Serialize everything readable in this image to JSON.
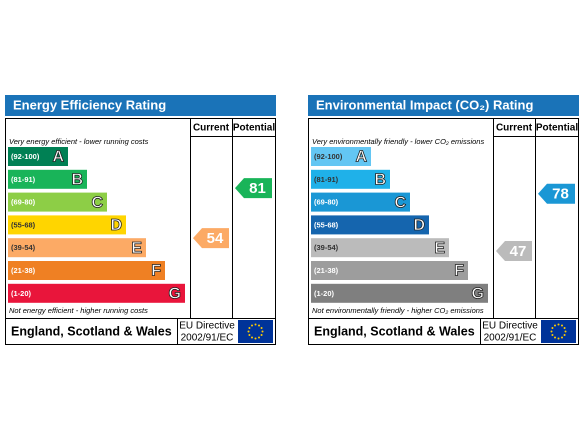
{
  "panels": [
    {
      "title": "Energy Efficiency Rating",
      "columns": [
        "Current",
        "Potential"
      ],
      "top_note": "Very energy efficient - lower running costs",
      "bottom_note": "Not energy efficient - higher running costs",
      "bands": [
        {
          "range": "(92-100)",
          "letter": "A",
          "color": "#008054",
          "text_color": "#ffffff"
        },
        {
          "range": "(81-91)",
          "letter": "B",
          "color": "#19b459",
          "text_color": "#ffffff"
        },
        {
          "range": "(69-80)",
          "letter": "C",
          "color": "#8dce46",
          "text_color": "#ffffff"
        },
        {
          "range": "(55-68)",
          "letter": "D",
          "color": "#ffd500",
          "text_color": "#333333"
        },
        {
          "range": "(39-54)",
          "letter": "E",
          "color": "#fcaa65",
          "text_color": "#333333"
        },
        {
          "range": "(21-38)",
          "letter": "F",
          "color": "#ef8023",
          "text_color": "#ffffff"
        },
        {
          "range": "(1-20)",
          "letter": "G",
          "color": "#e9153b",
          "text_color": "#ffffff"
        }
      ],
      "current": {
        "value": "54",
        "color": "#fcaa65"
      },
      "potential": {
        "value": "81",
        "color": "#19b459"
      },
      "footer": "England, Scotland & Wales",
      "directive": [
        "EU Directive",
        "2002/91/EC"
      ]
    },
    {
      "title": "Environmental Impact (CO₂) Rating",
      "columns": [
        "Current",
        "Potential"
      ],
      "top_note": "Very environmentally friendly - lower CO₂ emissions",
      "bottom_note": "Not environmentally friendly - higher CO₂ emissions",
      "bands": [
        {
          "range": "(92-100)",
          "letter": "A",
          "color": "#63c6f3",
          "text_color": "#333333"
        },
        {
          "range": "(81-91)",
          "letter": "B",
          "color": "#1fb1e9",
          "text_color": "#333333"
        },
        {
          "range": "(69-80)",
          "letter": "C",
          "color": "#1a97d5",
          "text_color": "#ffffff"
        },
        {
          "range": "(55-68)",
          "letter": "D",
          "color": "#1565ae",
          "text_color": "#ffffff"
        },
        {
          "range": "(39-54)",
          "letter": "E",
          "color": "#bbbbbb",
          "text_color": "#333333"
        },
        {
          "range": "(21-38)",
          "letter": "F",
          "color": "#9d9d9d",
          "text_color": "#ffffff"
        },
        {
          "range": "(1-20)",
          "letter": "G",
          "color": "#7f7f7f",
          "text_color": "#ffffff"
        }
      ],
      "current": {
        "value": "47",
        "color": "#bbbbbb"
      },
      "potential": {
        "value": "78",
        "color": "#1a97d5"
      },
      "footer": "England, Scotland & Wales",
      "directive": [
        "EU Directive",
        "2002/91/EC"
      ]
    }
  ]
}
